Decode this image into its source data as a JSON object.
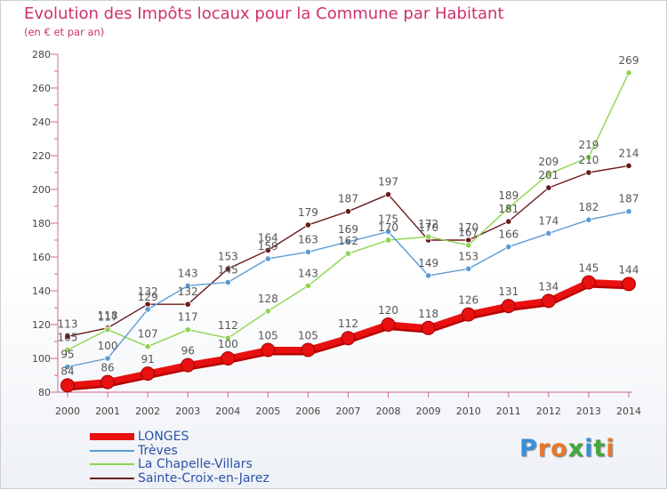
{
  "title": "Evolution des Impôts locaux pour la Commune par Habitant",
  "subtitle": "(en € et par an)",
  "brand": {
    "text": "Proxiti",
    "colors": [
      "#3a8fd8",
      "#e8772a",
      "#e8772a",
      "#43a83d",
      "#3a8fd8",
      "#43a83d",
      "#e8772a"
    ]
  },
  "chart_data": {
    "type": "line",
    "title": "Evolution des Impôts locaux pour la Commune par Habitant",
    "subtitle": "(en € et par an)",
    "xlabel": "",
    "ylabel": "",
    "ylim": [
      80,
      280
    ],
    "yticks": [
      80,
      100,
      120,
      140,
      160,
      180,
      200,
      220,
      240,
      260,
      280
    ],
    "grid": false,
    "legend": "bottom-left",
    "categories": [
      "2000",
      "2001",
      "2002",
      "2003",
      "2004",
      "2005",
      "2006",
      "2007",
      "2008",
      "2009",
      "2010",
      "2011",
      "2012",
      "2013",
      "2014"
    ],
    "series": [
      {
        "name": "LONGES",
        "color": "#e81010",
        "values": [
          84,
          86,
          91,
          96,
          100,
          105,
          105,
          112,
          120,
          118,
          126,
          131,
          134,
          145,
          144
        ]
      },
      {
        "name": "Trèves",
        "color": "#5b9bd5",
        "values": [
          95,
          100,
          129,
          143,
          145,
          159,
          163,
          169,
          175,
          149,
          153,
          166,
          174,
          182,
          187
        ]
      },
      {
        "name": "La Chapelle-Villars",
        "color": "#8ed44f",
        "values": [
          105,
          117,
          107,
          117,
          112,
          128,
          143,
          162,
          170,
          172,
          167,
          189,
          209,
          219,
          269
        ]
      },
      {
        "name": "Sainte-Croix-en-Jarez",
        "color": "#6b1a1a",
        "values": [
          113,
          118,
          132,
          132,
          153,
          164,
          179,
          187,
          197,
          170,
          170,
          181,
          201,
          210,
          214
        ]
      }
    ]
  }
}
